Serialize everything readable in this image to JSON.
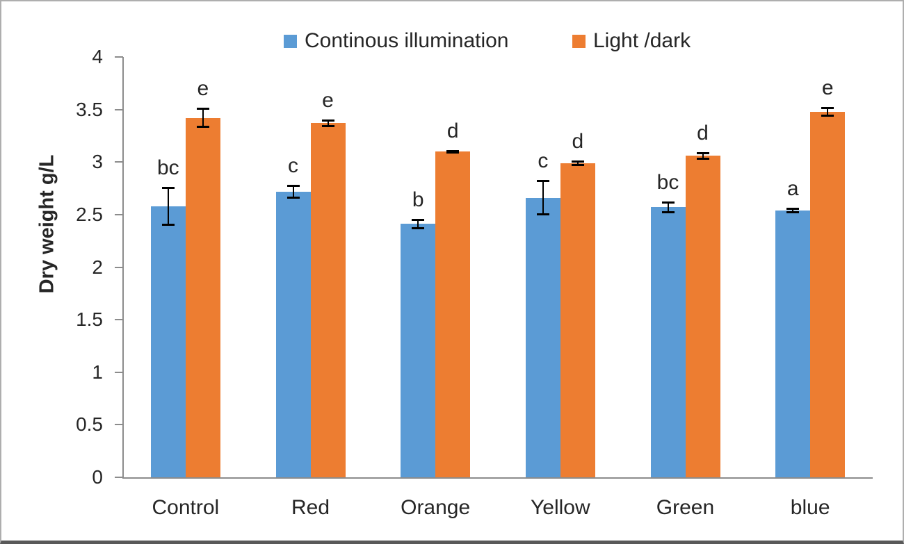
{
  "chart_data": {
    "type": "bar",
    "title": "",
    "xlabel": "",
    "ylabel": "Dry weight g/L",
    "ylim": [
      0,
      4
    ],
    "yticks": [
      0,
      0.5,
      1,
      1.5,
      2,
      2.5,
      3,
      3.5,
      4
    ],
    "ytick_labels": [
      "0",
      "0.5",
      "1",
      "1.5",
      "2",
      "2.5",
      "3",
      "3.5",
      "4"
    ],
    "categories": [
      "Control",
      "Red",
      "Orange",
      "Yellow",
      "Green",
      "blue"
    ],
    "grid": false,
    "legend_position": "top-center",
    "axis_color": "#8c8c8c",
    "text_color": "#262626",
    "series": [
      {
        "name": "Continous illumination",
        "color": "#5B9BD5",
        "values": [
          2.58,
          2.72,
          2.41,
          2.66,
          2.57,
          2.54
        ],
        "errors": [
          0.18,
          0.06,
          0.04,
          0.16,
          0.05,
          0.02
        ],
        "sig_labels": [
          "bc",
          "c",
          "b",
          "c",
          "bc",
          "a"
        ]
      },
      {
        "name": "Light /dark",
        "color": "#ED7D31",
        "values": [
          3.42,
          3.37,
          3.1,
          2.99,
          3.06,
          3.48
        ],
        "errors": [
          0.09,
          0.03,
          0.01,
          0.02,
          0.03,
          0.04
        ],
        "sig_labels": [
          "e",
          "e",
          "d",
          "d",
          "d",
          "e"
        ]
      }
    ]
  }
}
